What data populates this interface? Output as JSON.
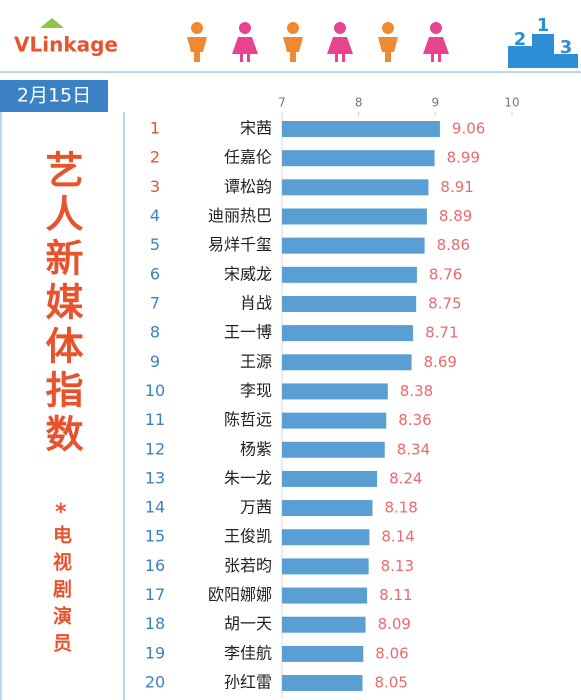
{
  "header": {
    "logo": "VLinkage",
    "podium": [
      "2",
      "1",
      "3"
    ]
  },
  "sidebar": {
    "date": "2月15日",
    "title": "艺人新媒体指数",
    "star": "*",
    "subtitle": "电视剧演员"
  },
  "chart_data": {
    "type": "bar",
    "orientation": "horizontal",
    "ranks": [
      1,
      2,
      3,
      4,
      5,
      6,
      7,
      8,
      9,
      10,
      11,
      12,
      13,
      14,
      15,
      16,
      17,
      18,
      19,
      20
    ],
    "categories": [
      "宋茜",
      "任嘉伦",
      "谭松韵",
      "迪丽热巴",
      "易烊千玺",
      "宋威龙",
      "肖战",
      "王一博",
      "王源",
      "李现",
      "陈哲远",
      "杨紫",
      "朱一龙",
      "万茜",
      "王俊凯",
      "张若昀",
      "欧阳娜娜",
      "胡一天",
      "李佳航",
      "孙红雷"
    ],
    "values": [
      9.06,
      8.99,
      8.91,
      8.89,
      8.86,
      8.76,
      8.75,
      8.71,
      8.69,
      8.38,
      8.36,
      8.34,
      8.24,
      8.18,
      8.14,
      8.13,
      8.11,
      8.09,
      8.06,
      8.05
    ],
    "color": "#5a9fd4",
    "label_color": "#ec6a6a",
    "top_rank_color": "#e8532e",
    "rank_color": "#3b82c4",
    "xlim": [
      7,
      10
    ],
    "xticks": [
      7,
      8,
      9,
      10
    ]
  }
}
